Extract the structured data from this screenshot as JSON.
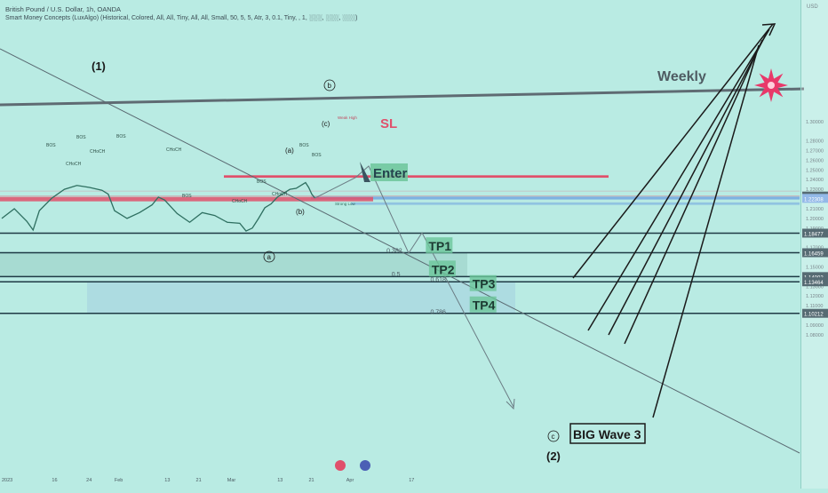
{
  "header": {
    "title": "British Pound / U.S. Dollar, 1h, OANDA",
    "subtitle": "Smart Money Concepts (LuxAlgo) (Historical, Colored, All, All, Tiny, All, All, Small, 50, 5, 5, Atr, 3, 0.1, Tiny, , 1, ░░░, ░░░, ░░░)"
  },
  "currency": "USD",
  "colors": {
    "background": "#b9ebe3",
    "sl_zone": "#e0506b",
    "entry_zone": "#6fa2e0",
    "tp_label": "#6cc59a",
    "level_line": "#1e3a45",
    "trend_line": "#5a6a72",
    "weekly_line": "#5f6b73",
    "star": "#e8396a"
  },
  "chart_data": {
    "type": "line",
    "title": "",
    "xlabel": "",
    "ylabel": "",
    "ylim": [
      1.076,
      1.306
    ],
    "x_ticks": [
      {
        "label": "2023",
        "t": 0
      },
      {
        "label": "16",
        "t": 8
      },
      {
        "label": "24",
        "t": 13.5
      },
      {
        "label": "Feb",
        "t": 18
      },
      {
        "label": "13",
        "t": 26
      },
      {
        "label": "21",
        "t": 31
      },
      {
        "label": "Mar",
        "t": 36
      },
      {
        "label": "13",
        "t": 44
      },
      {
        "label": "21",
        "t": 49
      },
      {
        "label": "Apr",
        "t": 55
      },
      {
        "label": "17",
        "t": 65
      }
    ],
    "y_ticks": [
      {
        "label": "1.30000",
        "v": 1.3
      },
      {
        "label": "1.28000",
        "v": 1.28
      },
      {
        "label": "1.27000",
        "v": 1.27
      },
      {
        "label": "1.26000",
        "v": 1.26
      },
      {
        "label": "1.25000",
        "v": 1.25
      },
      {
        "label": "1.24000",
        "v": 1.24
      },
      {
        "label": "1.23000",
        "v": 1.23
      },
      {
        "label": "1.21000",
        "v": 1.21
      },
      {
        "label": "1.20000",
        "v": 1.2
      },
      {
        "label": "1.19000",
        "v": 1.19
      },
      {
        "label": "1.17000",
        "v": 1.17
      },
      {
        "label": "1.15000",
        "v": 1.15
      },
      {
        "label": "1.13000",
        "v": 1.13
      },
      {
        "label": "1.12000",
        "v": 1.12
      },
      {
        "label": "1.11000",
        "v": 1.11
      },
      {
        "label": "1.09000",
        "v": 1.09
      },
      {
        "label": "1.08000",
        "v": 1.08
      }
    ],
    "price_tags": [
      {
        "label": "1.22308",
        "v": 1.2231,
        "color": "#1e3a45"
      },
      {
        "label": "1.22308",
        "v": 1.2207,
        "color": "#6fa2e0"
      },
      {
        "label": "1.18477",
        "v": 1.1848,
        "color": "#1e3a45"
      },
      {
        "label": "1.16459",
        "v": 1.1646,
        "color": "#1e3a45"
      },
      {
        "label": "1.14002",
        "v": 1.14,
        "color": "#1e3a45"
      },
      {
        "label": "1.13464",
        "v": 1.1346,
        "color": "#1e3a45"
      },
      {
        "label": "1.10212",
        "v": 1.1021,
        "color": "#1e3a45"
      }
    ],
    "price_path": [
      [
        0,
        1.2
      ],
      [
        2,
        1.21
      ],
      [
        4,
        1.197
      ],
      [
        5,
        1.188
      ],
      [
        6,
        1.208
      ],
      [
        8,
        1.221
      ],
      [
        10,
        1.23
      ],
      [
        12,
        1.234
      ],
      [
        14,
        1.232
      ],
      [
        16,
        1.229
      ],
      [
        17,
        1.225
      ],
      [
        18,
        1.208
      ],
      [
        20,
        1.2
      ],
      [
        22,
        1.206
      ],
      [
        24,
        1.214
      ],
      [
        25,
        1.222
      ],
      [
        26,
        1.219
      ],
      [
        28,
        1.205
      ],
      [
        30,
        1.196
      ],
      [
        32,
        1.206
      ],
      [
        34,
        1.203
      ],
      [
        36,
        1.196
      ],
      [
        38,
        1.195
      ],
      [
        39,
        1.187
      ],
      [
        40,
        1.19
      ],
      [
        41,
        1.2
      ],
      [
        42,
        1.211
      ],
      [
        43,
        1.215
      ],
      [
        44,
        1.222
      ],
      [
        45,
        1.226
      ],
      [
        46,
        1.23
      ],
      [
        47,
        1.231
      ],
      [
        48,
        1.235
      ],
      [
        48.5,
        1.237
      ],
      [
        49,
        1.232
      ],
      [
        49.5,
        1.225
      ],
      [
        50,
        1.221
      ]
    ],
    "sl_zone": [
      1.242,
      1.2445
    ],
    "entry_zone": [
      1.2195,
      1.2225
    ],
    "zone_lower": [
      1.214,
      1.2165
    ],
    "levels": [
      {
        "name": "1.18477",
        "v": 1.1848
      },
      {
        "name": "1.16459",
        "v": 1.1646
      },
      {
        "name": "1.14002",
        "v": 1.14
      },
      {
        "name": "1.13464",
        "v": 1.1346
      },
      {
        "name": "1.10212",
        "v": 1.1021
      }
    ],
    "fib_labels": [
      {
        "label": "0.382",
        "v": 1.1675,
        "t": 62
      },
      {
        "label": "0.5",
        "v": 1.1432,
        "t": 62.8
      },
      {
        "label": "0.618",
        "v": 1.1375,
        "t": 69
      },
      {
        "label": "0.786",
        "v": 1.1042,
        "t": 69
      }
    ],
    "tp_labels": [
      {
        "label": "TP1",
        "v": 1.1695,
        "t": 67
      },
      {
        "label": "TP2",
        "v": 1.1455,
        "t": 67.5
      },
      {
        "label": "TP3",
        "v": 1.1305,
        "t": 74
      },
      {
        "label": "TP4",
        "v": 1.1085,
        "t": 74
      }
    ],
    "annotations": {
      "weekly": "Weekly",
      "sl": "SL",
      "enter": "Enter",
      "big_wave": "BIG Wave 3",
      "wave1": "(1)",
      "wave2": "(2)",
      "wave_b_circle": "b",
      "wave_a_circle": "a",
      "wave_c_circle": "c",
      "wave_c_paren": "(c)",
      "wave_a_paren": "(a)",
      "wave_b_paren": "(b)",
      "weak_high": "Weak High",
      "strong_low": "Strong Low"
    },
    "smc_labels": [
      "BOS",
      "CHoCH",
      "BOS",
      "CHoCH",
      "BOS",
      "CHoCH",
      "BOS",
      "CHoCH",
      "BOS",
      "CHoCH",
      "BOS",
      "BOS"
    ],
    "legend": "none",
    "grid": false
  }
}
